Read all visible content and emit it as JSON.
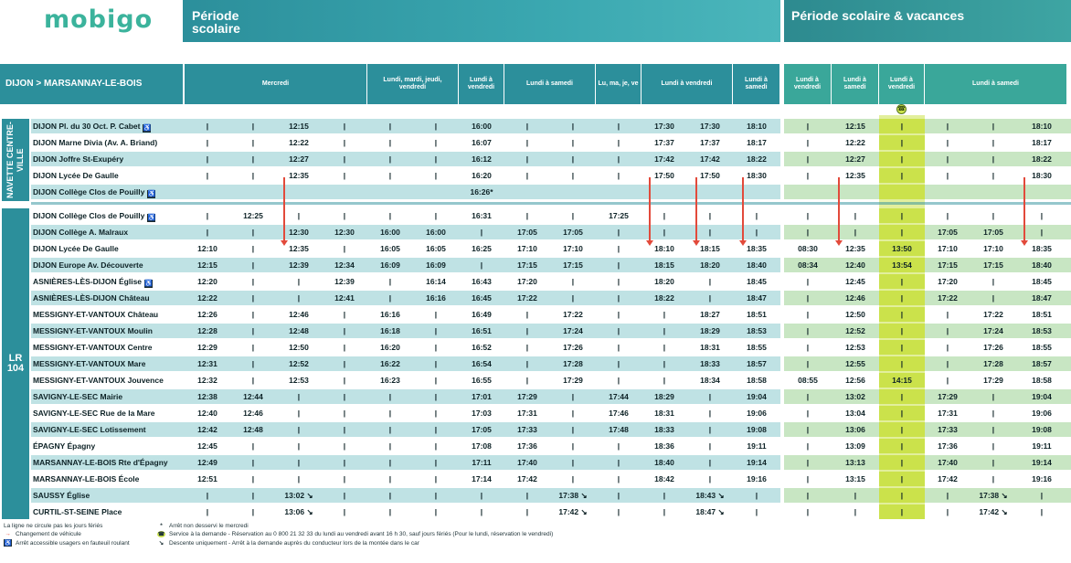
{
  "brand": {
    "logo": "mobigo"
  },
  "periods": {
    "school": "Période scolaire",
    "school_holidays": "Période scolaire & vacances"
  },
  "route": {
    "title": "DIJON > MARSANNAY-LE-BOIS"
  },
  "groups": {
    "navette": "NAVETTE CENTRE-VILLE",
    "lr": "LR 104"
  },
  "columns": [
    {
      "day": "Mercredi"
    },
    {
      "day": ""
    },
    {
      "day": ""
    },
    {
      "day": ""
    },
    {
      "day": "Lundi, mardi, jeudi, vendredi"
    },
    {
      "day": ""
    },
    {
      "day": "Lundi à vendredi"
    },
    {
      "day": "Lundi à samedi"
    },
    {
      "day": ""
    },
    {
      "day": "Lu, ma, je, ve"
    },
    {
      "day": "Lundi à vendredi"
    },
    {
      "day": ""
    },
    {
      "day": "Lundi à samedi"
    },
    {
      "day": "Lundi à vendredi"
    },
    {
      "day": "Lundi à samedi"
    },
    {
      "day": "Lundi à vendredi"
    },
    {
      "day": "Lundi à samedi"
    },
    {
      "day": ""
    },
    {
      "day": ""
    }
  ],
  "headers": [
    {
      "label": "Mercredi"
    },
    {
      "label": "Lundi, mardi, jeudi, vendredi"
    },
    {
      "label": "Lundi à vendredi"
    },
    {
      "label": "Lundi à samedi"
    },
    {
      "label": "Lu, ma, je, ve"
    },
    {
      "label": "Lundi à vendredi"
    },
    {
      "label": "Lundi à samedi"
    },
    {
      "label": "Lundi à vendredi"
    },
    {
      "label": "Lundi à samedi"
    },
    {
      "label": "Lundi à vendredi"
    },
    {
      "label": "Lundi à samedi"
    }
  ],
  "phone_icon": "phone-icon",
  "rows": [
    {
      "stop": "DIJON Pl. du 30 Oct. P. Cabet",
      "acc": true,
      "t": [
        "|",
        "|",
        "12:15",
        "|",
        "|",
        "|",
        "16:00",
        "|",
        "|",
        "|",
        "17:30",
        "17:30",
        "18:10",
        "|",
        "12:15",
        "|",
        "|",
        "|",
        "18:10"
      ]
    },
    {
      "stop": "DIJON Marne Divia (Av. A. Briand)",
      "acc": false,
      "t": [
        "|",
        "|",
        "12:22",
        "|",
        "|",
        "|",
        "16:07",
        "|",
        "|",
        "|",
        "17:37",
        "17:37",
        "18:17",
        "|",
        "12:22",
        "|",
        "|",
        "|",
        "18:17"
      ]
    },
    {
      "stop": "DIJON Joffre St-Exupéry",
      "acc": false,
      "t": [
        "|",
        "|",
        "12:27",
        "|",
        "|",
        "|",
        "16:12",
        "|",
        "|",
        "|",
        "17:42",
        "17:42",
        "18:22",
        "|",
        "12:27",
        "|",
        "|",
        "|",
        "18:22"
      ]
    },
    {
      "stop": "DIJON Lycée De Gaulle",
      "acc": false,
      "t": [
        "|",
        "|",
        "12:35",
        "|",
        "|",
        "|",
        "16:20",
        "|",
        "|",
        "|",
        "17:50",
        "17:50",
        "18:30",
        "|",
        "12:35",
        "|",
        "|",
        "|",
        "18:30"
      ]
    },
    {
      "stop": "DIJON Collège Clos de Pouilly",
      "acc": true,
      "t": [
        "",
        "",
        "",
        "",
        "",
        "",
        "16:26*",
        "",
        "",
        "",
        "",
        "",
        "",
        "",
        "",
        "",
        "",
        "",
        ""
      ]
    },
    {
      "stop": "DIJON Collège Clos de Pouilly",
      "acc": true,
      "t": [
        "|",
        "12:25",
        "|",
        "|",
        "|",
        "|",
        "16:31",
        "|",
        "|",
        "17:25",
        "|",
        "|",
        "|",
        "|",
        "|",
        "|",
        "|",
        "|",
        "|"
      ]
    },
    {
      "stop": "DIJON Collège A. Malraux",
      "acc": false,
      "t": [
        "|",
        "|",
        "12:30",
        "12:30",
        "16:00",
        "16:00",
        "|",
        "17:05",
        "17:05",
        "|",
        "|",
        "|",
        "|",
        "|",
        "|",
        "|",
        "17:05",
        "17:05",
        "|"
      ]
    },
    {
      "stop": "DIJON Lycée De Gaulle",
      "acc": false,
      "t": [
        "12:10",
        "|",
        "12:35",
        "|",
        "16:05",
        "16:05",
        "16:25",
        "17:10",
        "17:10",
        "|",
        "18:10",
        "18:15",
        "18:35",
        "08:30",
        "12:35",
        "13:50",
        "17:10",
        "17:10",
        "18:35"
      ]
    },
    {
      "stop": "DIJON Europe Av. Découverte",
      "acc": false,
      "t": [
        "12:15",
        "|",
        "12:39",
        "12:34",
        "16:09",
        "16:09",
        "|",
        "17:15",
        "17:15",
        "|",
        "18:15",
        "18:20",
        "18:40",
        "08:34",
        "12:40",
        "13:54",
        "17:15",
        "17:15",
        "18:40"
      ]
    },
    {
      "stop": "ASNIÈRES-LÈS-DIJON Église",
      "acc": true,
      "t": [
        "12:20",
        "|",
        "|",
        "12:39",
        "|",
        "16:14",
        "16:43",
        "17:20",
        "|",
        "|",
        "18:20",
        "|",
        "18:45",
        "|",
        "12:45",
        "|",
        "17:20",
        "|",
        "18:45"
      ]
    },
    {
      "stop": "ASNIÈRES-LÈS-DIJON Château",
      "acc": false,
      "t": [
        "12:22",
        "|",
        "|",
        "12:41",
        "|",
        "16:16",
        "16:45",
        "17:22",
        "|",
        "|",
        "18:22",
        "|",
        "18:47",
        "|",
        "12:46",
        "|",
        "17:22",
        "|",
        "18:47"
      ]
    },
    {
      "stop": "MESSIGNY-ET-VANTOUX Château",
      "acc": false,
      "t": [
        "12:26",
        "|",
        "12:46",
        "|",
        "16:16",
        "|",
        "16:49",
        "|",
        "17:22",
        "|",
        "|",
        "18:27",
        "18:51",
        "|",
        "12:50",
        "|",
        "|",
        "17:22",
        "18:51"
      ]
    },
    {
      "stop": "MESSIGNY-ET-VANTOUX Moulin",
      "acc": false,
      "t": [
        "12:28",
        "|",
        "12:48",
        "|",
        "16:18",
        "|",
        "16:51",
        "|",
        "17:24",
        "|",
        "|",
        "18:29",
        "18:53",
        "|",
        "12:52",
        "|",
        "|",
        "17:24",
        "18:53"
      ]
    },
    {
      "stop": "MESSIGNY-ET-VANTOUX Centre",
      "acc": false,
      "t": [
        "12:29",
        "|",
        "12:50",
        "|",
        "16:20",
        "|",
        "16:52",
        "|",
        "17:26",
        "|",
        "|",
        "18:31",
        "18:55",
        "|",
        "12:53",
        "|",
        "|",
        "17:26",
        "18:55"
      ]
    },
    {
      "stop": "MESSIGNY-ET-VANTOUX Mare",
      "acc": false,
      "t": [
        "12:31",
        "|",
        "12:52",
        "|",
        "16:22",
        "|",
        "16:54",
        "|",
        "17:28",
        "|",
        "|",
        "18:33",
        "18:57",
        "|",
        "12:55",
        "|",
        "|",
        "17:28",
        "18:57"
      ]
    },
    {
      "stop": "MESSIGNY-ET-VANTOUX Jouvence",
      "acc": false,
      "t": [
        "12:32",
        "|",
        "12:53",
        "|",
        "16:23",
        "|",
        "16:55",
        "|",
        "17:29",
        "|",
        "|",
        "18:34",
        "18:58",
        "08:55",
        "12:56",
        "14:15",
        "|",
        "17:29",
        "18:58"
      ]
    },
    {
      "stop": "SAVIGNY-LE-SEC Mairie",
      "acc": false,
      "t": [
        "12:38",
        "12:44",
        "|",
        "|",
        "|",
        "|",
        "17:01",
        "17:29",
        "|",
        "17:44",
        "18:29",
        "|",
        "19:04",
        "|",
        "13:02",
        "|",
        "17:29",
        "|",
        "19:04"
      ]
    },
    {
      "stop": "SAVIGNY-LE-SEC Rue de la Mare",
      "acc": false,
      "t": [
        "12:40",
        "12:46",
        "|",
        "|",
        "|",
        "|",
        "17:03",
        "17:31",
        "|",
        "17:46",
        "18:31",
        "|",
        "19:06",
        "|",
        "13:04",
        "|",
        "17:31",
        "|",
        "19:06"
      ]
    },
    {
      "stop": "SAVIGNY-LE-SEC Lotissement",
      "acc": false,
      "t": [
        "12:42",
        "12:48",
        "|",
        "|",
        "|",
        "|",
        "17:05",
        "17:33",
        "|",
        "17:48",
        "18:33",
        "|",
        "19:08",
        "|",
        "13:06",
        "|",
        "17:33",
        "|",
        "19:08"
      ]
    },
    {
      "stop": "ÉPAGNY Épagny",
      "acc": false,
      "t": [
        "12:45",
        "|",
        "|",
        "|",
        "|",
        "|",
        "17:08",
        "17:36",
        "|",
        "|",
        "18:36",
        "|",
        "19:11",
        "|",
        "13:09",
        "|",
        "17:36",
        "|",
        "19:11"
      ]
    },
    {
      "stop": "MARSANNAY-LE-BOIS Rte d'Épagny",
      "acc": false,
      "t": [
        "12:49",
        "|",
        "|",
        "|",
        "|",
        "|",
        "17:11",
        "17:40",
        "|",
        "|",
        "18:40",
        "|",
        "19:14",
        "|",
        "13:13",
        "|",
        "17:40",
        "|",
        "19:14"
      ]
    },
    {
      "stop": "MARSANNAY-LE-BOIS École",
      "acc": false,
      "t": [
        "12:51",
        "|",
        "|",
        "|",
        "|",
        "|",
        "17:14",
        "17:42",
        "|",
        "|",
        "18:42",
        "|",
        "19:16",
        "|",
        "13:15",
        "|",
        "17:42",
        "|",
        "19:16"
      ]
    },
    {
      "stop": "SAUSSY Église",
      "acc": false,
      "t": [
        "|",
        "|",
        "13:02 ↘",
        "|",
        "|",
        "|",
        "|",
        "|",
        "17:38 ↘",
        "|",
        "|",
        "18:43 ↘",
        "|",
        "|",
        "|",
        "|",
        "|",
        "17:38 ↘",
        "|"
      ]
    },
    {
      "stop": "CURTIL-ST-SEINE Place",
      "acc": false,
      "t": [
        "|",
        "|",
        "13:06 ↘",
        "|",
        "|",
        "|",
        "|",
        "|",
        "17:42 ↘",
        "|",
        "|",
        "18:47 ↘",
        "|",
        "|",
        "|",
        "|",
        "|",
        "17:42 ↘",
        "|"
      ]
    }
  ],
  "footnotes": {
    "holidays": "La ligne ne circule pas les jours fériés",
    "change": "Changement de véhicule",
    "access": "Arrêt accessible usagers en fauteuil roulant",
    "star": "Arrêt non desservi le mercredi",
    "ondemand": "Service à la demande - Réservation au 0 800 21 32 33 du lundi au vendredi avant 16 h 30, sauf jours fériés (Pour le lundi, réservation le vendredi)",
    "dropoff": "Descente uniquement - Arrêt à la demande auprès du conducteur lors de la montée dans le car",
    "star_sym": "*",
    "drop_sym": "↘",
    "acc_sym": "♿"
  },
  "colors": {
    "teal_dark": "#2b8f9a",
    "teal_light": "#bfe2e4",
    "green_light": "#c8e6c3",
    "yellow": "#cbe24b",
    "red": "#e24a3b"
  }
}
